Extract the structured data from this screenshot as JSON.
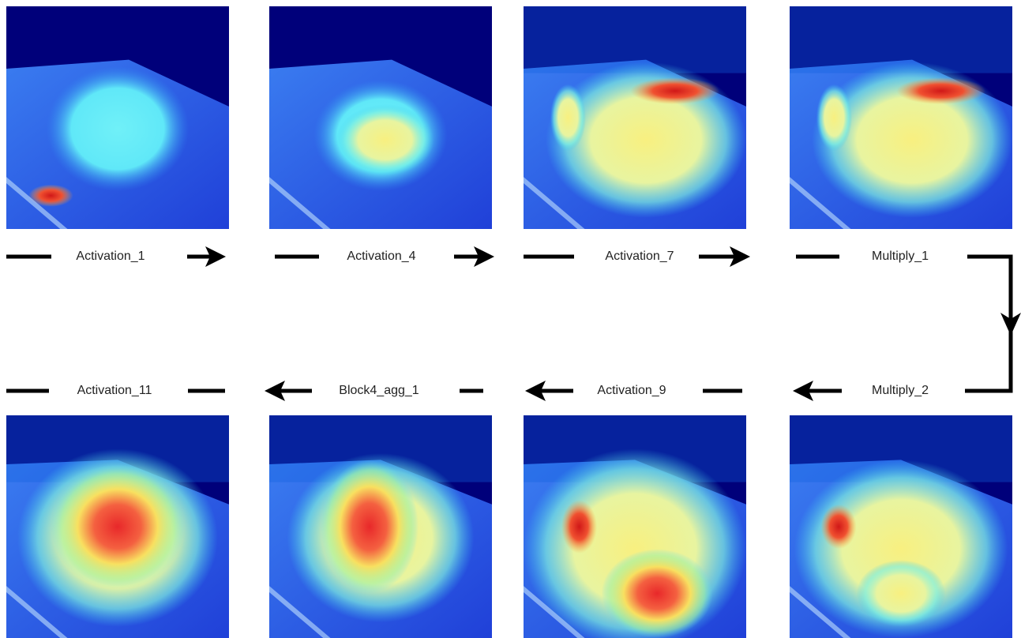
{
  "panels": [
    {
      "label": "Activation_1"
    },
    {
      "label": "Activation_4"
    },
    {
      "label": "Activation_7"
    },
    {
      "label": "Multiply_1"
    },
    {
      "label": "Activation_11"
    },
    {
      "label": "Block4_agg_1"
    },
    {
      "label": "Activation_9"
    },
    {
      "label": "Multiply_2"
    }
  ]
}
